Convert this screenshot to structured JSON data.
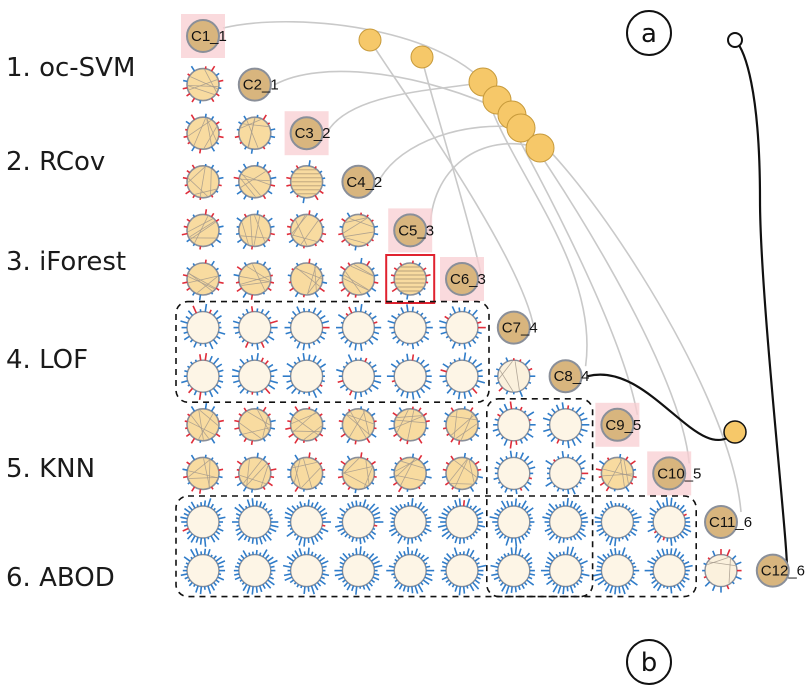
{
  "row_labels": [
    "1. oc-SVM",
    "2. RCov",
    "3. iForest",
    "4. LOF",
    "5. KNN",
    "6. ABOD"
  ],
  "diagonal_labels": [
    "C1_1",
    "C2_1",
    "C3_2",
    "C4_2",
    "C5_3",
    "C6_3",
    "C7_4",
    "C8_4",
    "C9_5",
    "C10_5",
    "C11_6",
    "C12_6"
  ],
  "markers": {
    "a": "a",
    "b": "b"
  },
  "colors": {
    "cell_fill": "#f8dba0",
    "cell_empty": "#fdf5e6",
    "cell_ring": "#8a8f99",
    "bar_blue": "#2f7cc9",
    "bar_red": "#e02d3a",
    "highlight_bg": "#f8cdd2",
    "node": "#f6c869",
    "node_stroke": "#c79a3b",
    "selected_box": "#e0222f",
    "link_gray": "#c9c9c9",
    "link_dark": "#111111"
  }
}
